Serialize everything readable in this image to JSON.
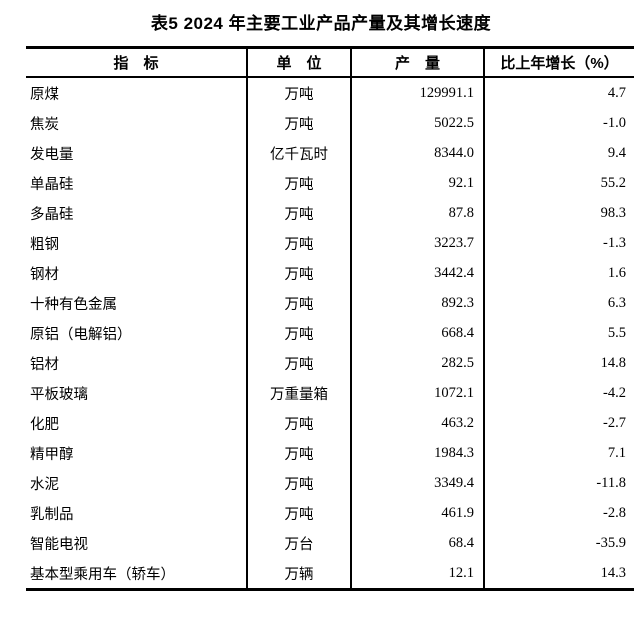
{
  "page": {
    "title": "表5 2024 年主要工业产品产量及其增长速度"
  },
  "table": {
    "headers": {
      "indicator": "指　标",
      "unit": "单　位",
      "output": "产　量",
      "growth": "比上年增长（%）"
    },
    "rows": [
      {
        "indicator": "原煤",
        "unit": "万吨",
        "output": "129991.1",
        "growth": "4.7"
      },
      {
        "indicator": "焦炭",
        "unit": "万吨",
        "output": "5022.5",
        "growth": "-1.0"
      },
      {
        "indicator": "发电量",
        "unit": "亿千瓦时",
        "output": "8344.0",
        "growth": "9.4"
      },
      {
        "indicator": "单晶硅",
        "unit": "万吨",
        "output": "92.1",
        "growth": "55.2"
      },
      {
        "indicator": "多晶硅",
        "unit": "万吨",
        "output": "87.8",
        "growth": "98.3"
      },
      {
        "indicator": "粗钢",
        "unit": "万吨",
        "output": "3223.7",
        "growth": "-1.3"
      },
      {
        "indicator": "钢材",
        "unit": "万吨",
        "output": "3442.4",
        "growth": "1.6"
      },
      {
        "indicator": "十种有色金属",
        "unit": "万吨",
        "output": "892.3",
        "growth": "6.3"
      },
      {
        "indicator": "原铝（电解铝）",
        "unit": "万吨",
        "output": "668.4",
        "growth": "5.5"
      },
      {
        "indicator": "铝材",
        "unit": "万吨",
        "output": "282.5",
        "growth": "14.8"
      },
      {
        "indicator": "平板玻璃",
        "unit": "万重量箱",
        "output": "1072.1",
        "growth": "-4.2"
      },
      {
        "indicator": "化肥",
        "unit": "万吨",
        "output": "463.2",
        "growth": "-2.7"
      },
      {
        "indicator": "精甲醇",
        "unit": "万吨",
        "output": "1984.3",
        "growth": "7.1"
      },
      {
        "indicator": "水泥",
        "unit": "万吨",
        "output": "3349.4",
        "growth": "-11.8"
      },
      {
        "indicator": "乳制品",
        "unit": "万吨",
        "output": "461.9",
        "growth": "-2.8"
      },
      {
        "indicator": "智能电视",
        "unit": "万台",
        "output": "68.4",
        "growth": "-35.9"
      },
      {
        "indicator": "基本型乘用车（轿车）",
        "unit": "万辆",
        "output": "12.1",
        "growth": "14.3"
      }
    ]
  },
  "colors": {
    "text": "#000000",
    "border": "#000000",
    "background": "#ffffff"
  }
}
